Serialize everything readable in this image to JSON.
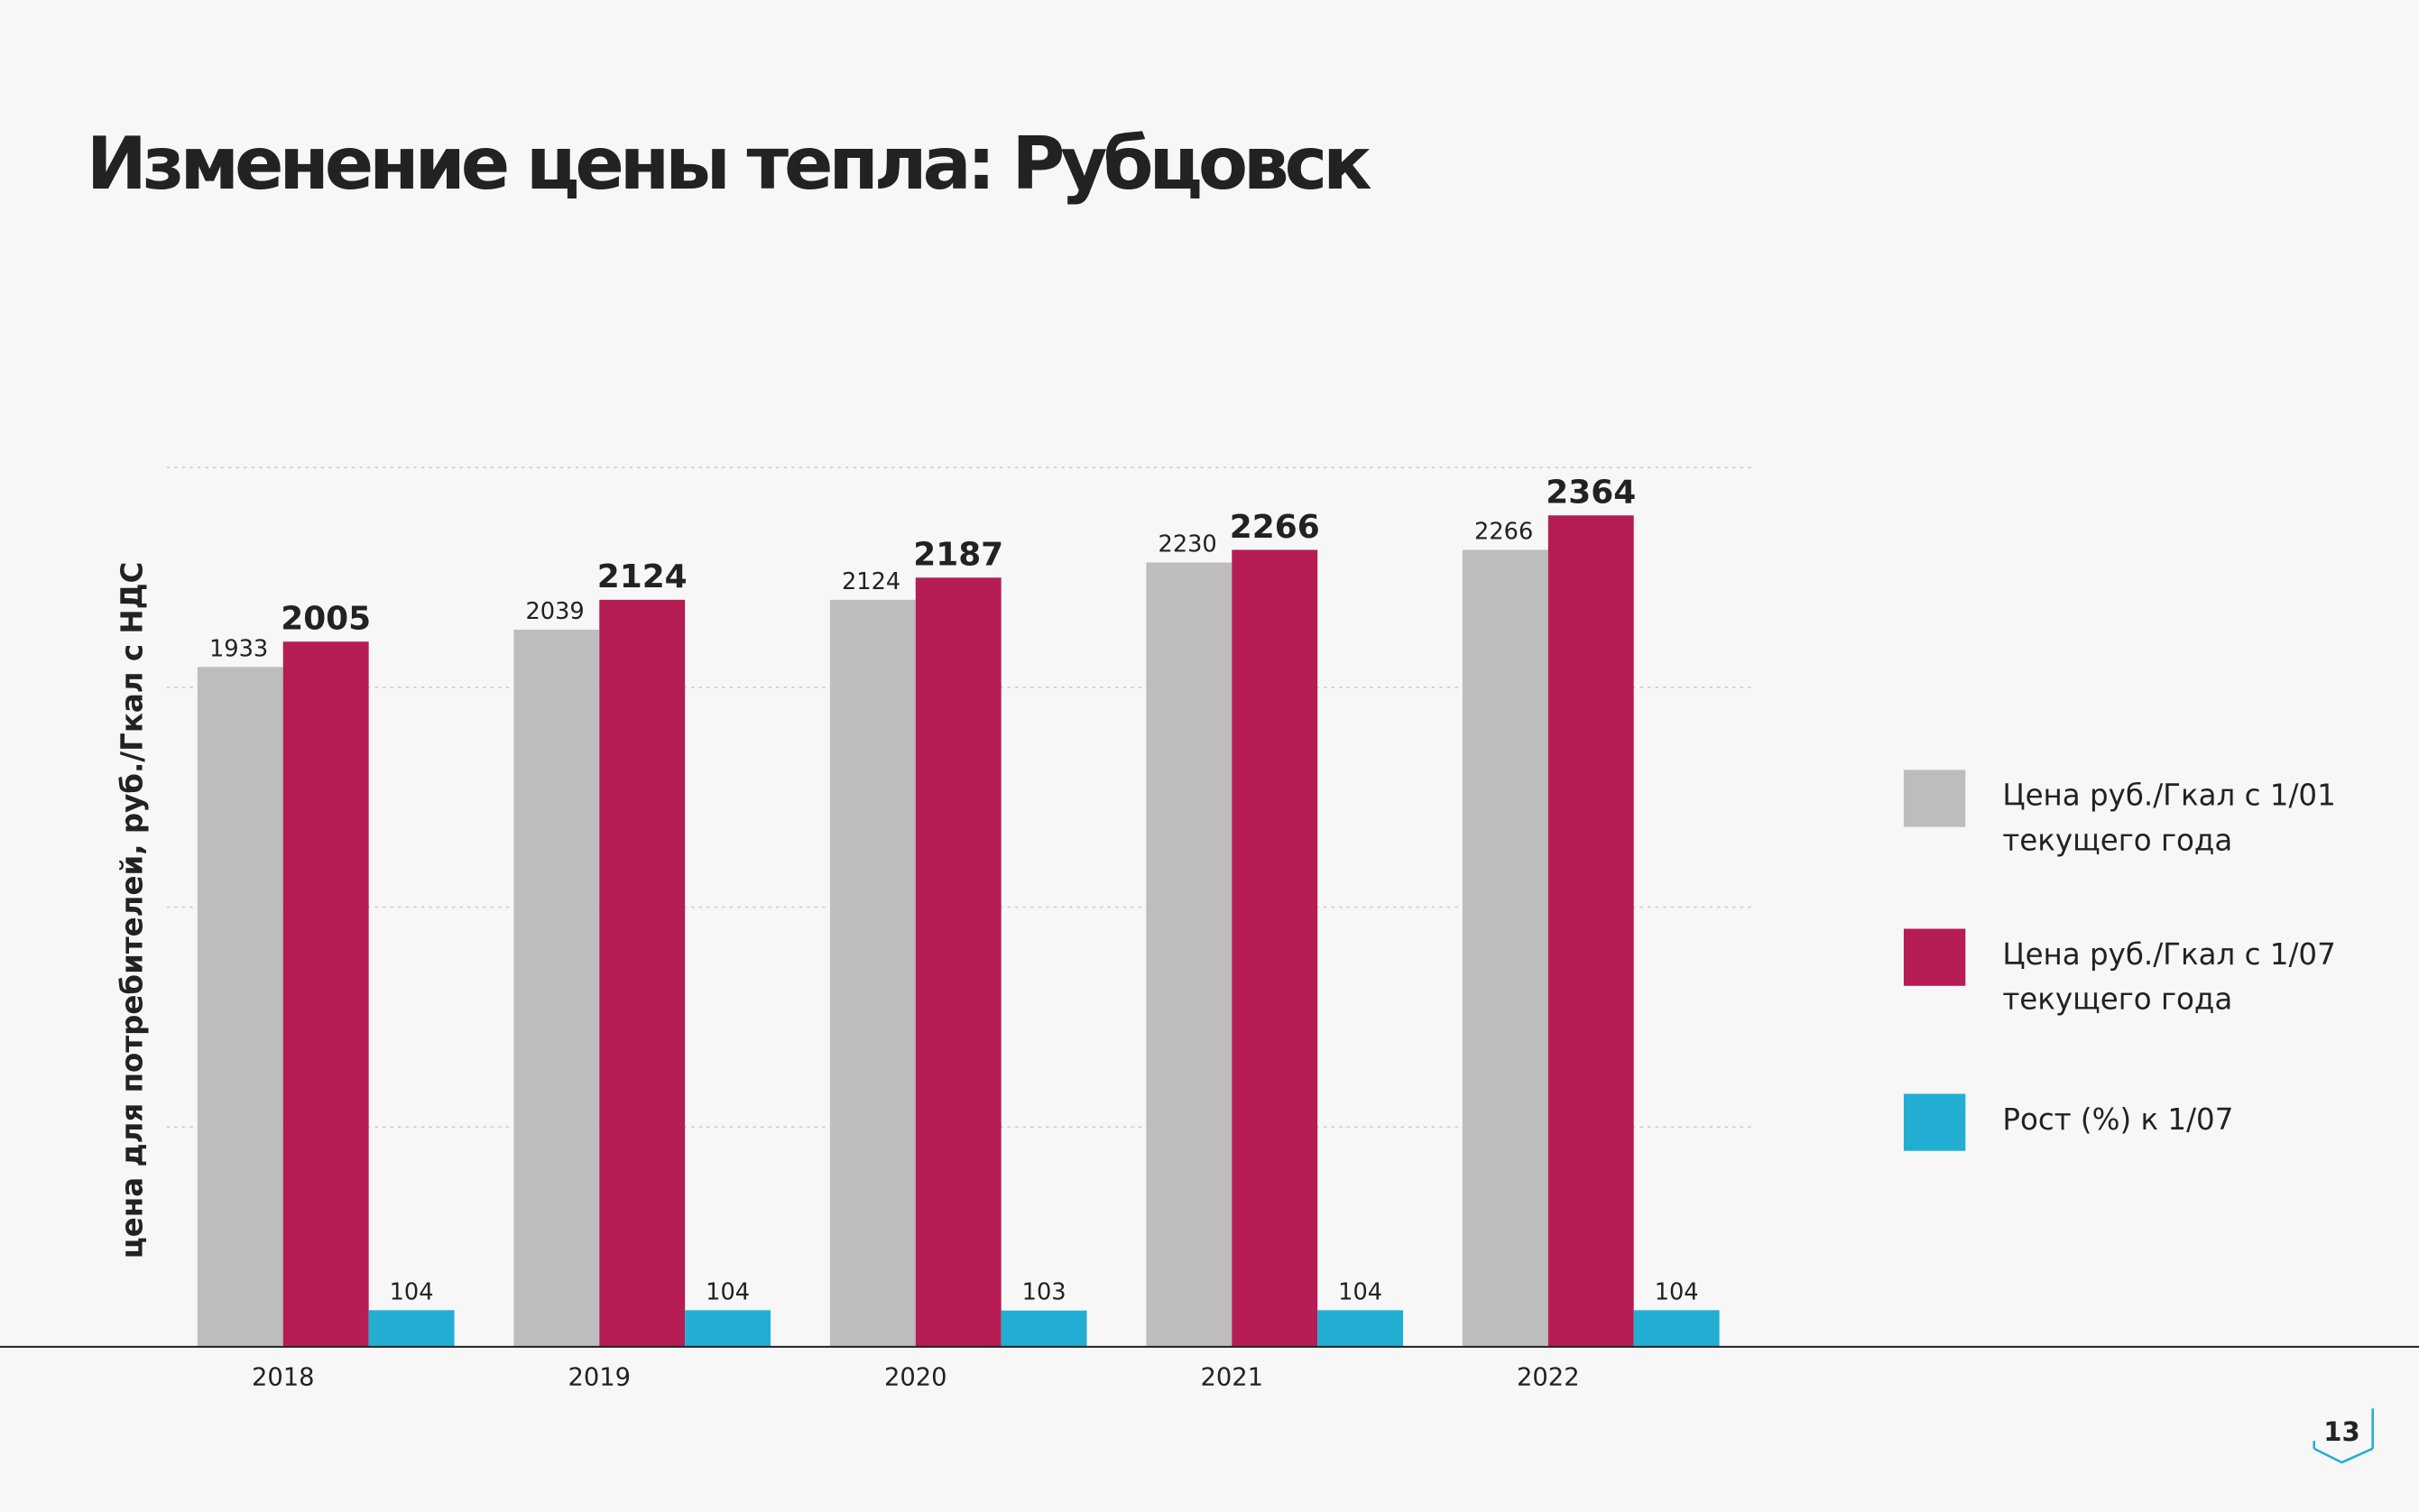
{
  "chart_data": {
    "type": "bar",
    "title": "Изменение цены тепла: Рубцовск",
    "y_label": "цена для потребителей, руб./Гкал с НДС",
    "categories": [
      "2018",
      "2019",
      "2020",
      "2021",
      "2022"
    ],
    "series": [
      {
        "name": "Цена руб./Гкал с 1/01 текущего года",
        "color": "#bdbdbd",
        "values": [
          1933,
          2039,
          2124,
          2230,
          2266
        ]
      },
      {
        "name": "Цена руб./Гкал с 1/07 текущего года",
        "color": "#b51d54",
        "values": [
          2005,
          2124,
          2187,
          2266,
          2364
        ]
      },
      {
        "name": "Рост (%) к 1/07",
        "color": "#22aed3",
        "values": [
          104,
          104,
          103,
          104,
          104
        ]
      }
    ],
    "ylim": [
      0,
      2500
    ],
    "yticks": [
      0,
      625,
      1250,
      1875,
      2500
    ],
    "show_tick_labels": false,
    "grid": true,
    "legend": "right",
    "page_number": "13"
  }
}
